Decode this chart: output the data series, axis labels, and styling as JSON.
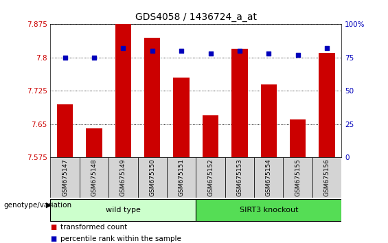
{
  "title": "GDS4058 / 1436724_a_at",
  "samples": [
    "GSM675147",
    "GSM675148",
    "GSM675149",
    "GSM675150",
    "GSM675151",
    "GSM675152",
    "GSM675153",
    "GSM675154",
    "GSM675155",
    "GSM675156"
  ],
  "transformed_count": [
    7.695,
    7.64,
    7.875,
    7.845,
    7.755,
    7.67,
    7.82,
    7.74,
    7.66,
    7.81
  ],
  "percentile_rank": [
    75,
    75,
    82,
    80,
    80,
    78,
    80,
    78,
    77,
    82
  ],
  "ylim_left": [
    7.575,
    7.875
  ],
  "ylim_right": [
    0,
    100
  ],
  "yticks_left": [
    7.575,
    7.65,
    7.725,
    7.8,
    7.875
  ],
  "ytick_labels_left": [
    "7.575",
    "7.65",
    "7.725",
    "7.8",
    "7.875"
  ],
  "yticks_right": [
    0,
    25,
    50,
    75,
    100
  ],
  "ytick_labels_right": [
    "0",
    "25",
    "50",
    "75",
    "100%"
  ],
  "bar_color": "#cc0000",
  "dot_color": "#0000bb",
  "background_fig": "#ffffff",
  "background_plot": "#ffffff",
  "tick_box_color": "#d4d4d4",
  "wild_type_color": "#ccffcc",
  "sirt3_color": "#55dd55",
  "label_color_left": "#cc0000",
  "label_color_right": "#0000bb",
  "legend_bar_label": "transformed count",
  "legend_dot_label": "percentile rank within the sample",
  "genotype_label": "genotype/variation",
  "genotype_names": [
    "wild type",
    "SIRT3 knockout"
  ],
  "n_wild": 5,
  "n_sirt3": 5
}
